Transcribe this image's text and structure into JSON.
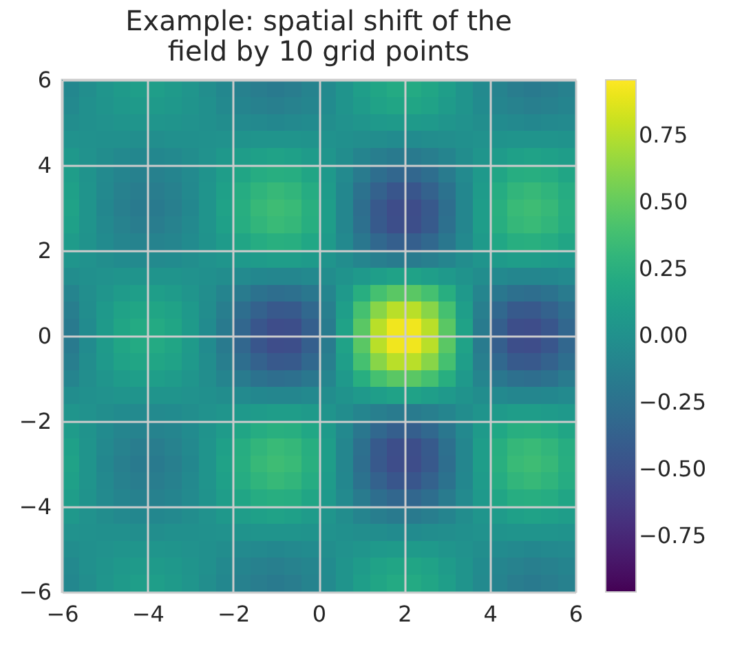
{
  "chart_data": {
    "type": "heatmap",
    "title": "Example: spatial shift of the\nfield by 10 grid points",
    "xlim": [
      -6,
      6
    ],
    "ylim": [
      -6,
      6
    ],
    "xticks": [
      {
        "value": -6,
        "label": "−6"
      },
      {
        "value": -4,
        "label": "−4"
      },
      {
        "value": -2,
        "label": "−2"
      },
      0,
      2,
      4,
      6
    ],
    "yticks": [
      {
        "value": -6,
        "label": "−6"
      },
      {
        "value": -4,
        "label": "−4"
      },
      {
        "value": -2,
        "label": "−2"
      },
      0,
      2,
      4,
      6
    ],
    "clim": [
      -0.96,
      0.96
    ],
    "cticks": [
      {
        "value": -0.75,
        "label": "−0.75"
      },
      {
        "value": -0.5,
        "label": "−0.50"
      },
      {
        "value": -0.25,
        "label": "−0.25"
      },
      {
        "value": 0,
        "label": "0.00"
      },
      0.25,
      {
        "value": 0.5,
        "label": "0.50"
      },
      0.75
    ],
    "grid": true,
    "cells": [
      [
        -0.07,
        -0.02,
        0.04,
        0.08,
        0.11,
        0.11,
        0.08,
        0.04,
        -0.02,
        -0.07,
        -0.13,
        -0.16,
        -0.18,
        -0.16,
        -0.11,
        -0.05,
        0.03,
        0.11,
        0.17,
        0.21,
        0.21,
        0.17,
        0.11,
        0.03,
        -0.05,
        -0.11,
        -0.16,
        -0.18,
        -0.16,
        -0.13
      ],
      [
        -0.06,
        -0.01,
        0.03,
        0.06,
        0.08,
        0.08,
        0.06,
        0.03,
        -0.01,
        -0.06,
        -0.1,
        -0.13,
        -0.14,
        -0.12,
        -0.09,
        -0.04,
        0.03,
        0.09,
        0.14,
        0.17,
        0.17,
        0.14,
        0.09,
        0.03,
        -0.04,
        -0.09,
        -0.12,
        -0.14,
        -0.13,
        -0.1
      ],
      [
        -0.03,
        -0.01,
        0.01,
        0.03,
        0.04,
        0.04,
        0.03,
        0.01,
        -0.01,
        -0.03,
        -0.05,
        -0.06,
        -0.07,
        -0.06,
        -0.04,
        -0.02,
        0.01,
        0.04,
        0.07,
        0.08,
        0.08,
        0.07,
        0.04,
        0.01,
        -0.02,
        -0.04,
        -0.06,
        -0.07,
        -0.06,
        -0.05
      ],
      [
        0.01,
        0,
        -0.01,
        -0.01,
        -0.02,
        -0.02,
        -0.01,
        -0.01,
        0,
        0.01,
        0.02,
        0.03,
        0.03,
        0.03,
        0.02,
        0.01,
        -0.01,
        -0.02,
        -0.03,
        -0.04,
        -0.04,
        -0.03,
        -0.02,
        -0.01,
        0.01,
        0.02,
        0.03,
        0.03,
        0.03,
        0.02
      ],
      [
        0.06,
        0.01,
        -0.03,
        -0.06,
        -0.07,
        -0.07,
        -0.06,
        -0.03,
        0.01,
        0.06,
        0.1,
        0.13,
        0.14,
        0.13,
        0.09,
        0.04,
        -0.03,
        -0.1,
        -0.15,
        -0.18,
        -0.18,
        -0.15,
        -0.1,
        -0.03,
        0.04,
        0.09,
        0.13,
        0.14,
        0.13,
        0.1
      ],
      [
        0.1,
        0.02,
        -0.05,
        -0.1,
        -0.13,
        -0.13,
        -0.1,
        -0.05,
        0.02,
        0.1,
        0.17,
        0.22,
        0.24,
        0.23,
        0.17,
        0.07,
        -0.05,
        -0.17,
        -0.27,
        -0.33,
        -0.33,
        -0.27,
        -0.17,
        -0.05,
        0.07,
        0.17,
        0.23,
        0.24,
        0.22,
        0.17
      ],
      [
        0.13,
        0.03,
        -0.06,
        -0.13,
        -0.16,
        -0.16,
        -0.13,
        -0.06,
        0.03,
        0.13,
        0.22,
        0.29,
        0.33,
        0.3,
        0.22,
        0.09,
        -0.07,
        -0.24,
        -0.37,
        -0.45,
        -0.45,
        -0.37,
        -0.24,
        -0.07,
        0.09,
        0.22,
        0.3,
        0.33,
        0.29,
        0.22
      ],
      [
        0.14,
        0.03,
        -0.07,
        -0.14,
        -0.18,
        -0.18,
        -0.14,
        -0.07,
        0.03,
        0.14,
        0.24,
        0.33,
        0.36,
        0.34,
        0.25,
        0.1,
        -0.08,
        -0.27,
        -0.43,
        -0.52,
        -0.52,
        -0.43,
        -0.27,
        -0.08,
        0.1,
        0.25,
        0.34,
        0.36,
        0.33,
        0.24
      ],
      [
        0.13,
        0.03,
        -0.06,
        -0.12,
        -0.16,
        -0.16,
        -0.12,
        -0.06,
        0.03,
        0.13,
        0.23,
        0.3,
        0.34,
        0.32,
        0.24,
        0.1,
        -0.08,
        -0.26,
        -0.42,
        -0.51,
        -0.51,
        -0.42,
        -0.26,
        -0.08,
        0.1,
        0.24,
        0.32,
        0.34,
        0.3,
        0.23
      ],
      [
        0.09,
        0.02,
        -0.04,
        -0.09,
        -0.11,
        -0.11,
        -0.09,
        -0.04,
        0.02,
        0.09,
        0.17,
        0.22,
        0.25,
        0.24,
        0.18,
        0.08,
        -0.06,
        -0.2,
        -0.32,
        -0.39,
        -0.39,
        -0.32,
        -0.2,
        -0.06,
        0.08,
        0.18,
        0.24,
        0.25,
        0.22,
        0.17
      ],
      [
        0.04,
        0.01,
        -0.02,
        -0.04,
        -0.05,
        -0.05,
        -0.04,
        -0.02,
        0.01,
        0.04,
        0.07,
        0.09,
        0.1,
        0.1,
        0.08,
        0.03,
        -0.03,
        -0.09,
        -0.14,
        -0.17,
        -0.17,
        -0.14,
        -0.09,
        -0.03,
        0.03,
        0.08,
        0.1,
        0.1,
        0.09,
        0.07
      ],
      [
        -0.03,
        -0.01,
        0.01,
        0.03,
        0.03,
        0.03,
        0.03,
        0.01,
        -0.01,
        -0.03,
        -0.05,
        -0.07,
        -0.08,
        -0.08,
        -0.06,
        -0.03,
        0.02,
        0.07,
        0.11,
        0.14,
        0.14,
        0.11,
        0.07,
        0.02,
        -0.03,
        -0.06,
        -0.08,
        -0.08,
        -0.07,
        -0.05
      ],
      [
        -0.1,
        -0.02,
        0.04,
        0.09,
        0.11,
        0.11,
        0.09,
        0.04,
        -0.02,
        -0.1,
        -0.17,
        -0.24,
        -0.27,
        -0.26,
        -0.2,
        -0.09,
        0.07,
        0.24,
        0.39,
        0.47,
        0.47,
        0.39,
        0.24,
        0.07,
        -0.09,
        -0.2,
        -0.26,
        -0.27,
        -0.24,
        -0.17
      ],
      [
        -0.15,
        -0.03,
        0.07,
        0.14,
        0.17,
        0.17,
        0.14,
        0.07,
        -0.03,
        -0.15,
        -0.27,
        -0.37,
        -0.43,
        -0.42,
        -0.32,
        -0.14,
        0.11,
        0.39,
        0.62,
        0.76,
        0.76,
        0.62,
        0.39,
        0.11,
        -0.14,
        -0.32,
        -0.42,
        -0.43,
        -0.37,
        -0.27
      ],
      [
        -0.18,
        -0.04,
        0.08,
        0.17,
        0.21,
        0.21,
        0.17,
        0.08,
        -0.04,
        -0.18,
        -0.33,
        -0.45,
        -0.52,
        -0.51,
        -0.39,
        -0.17,
        0.14,
        0.47,
        0.76,
        0.92,
        0.92,
        0.76,
        0.47,
        0.14,
        -0.17,
        -0.39,
        -0.51,
        -0.52,
        -0.45,
        -0.33
      ],
      [
        -0.18,
        -0.04,
        0.08,
        0.17,
        0.21,
        0.21,
        0.17,
        0.08,
        -0.04,
        -0.18,
        -0.33,
        -0.45,
        -0.52,
        -0.51,
        -0.39,
        -0.17,
        0.14,
        0.47,
        0.76,
        0.92,
        0.92,
        0.76,
        0.47,
        0.14,
        -0.17,
        -0.39,
        -0.51,
        -0.52,
        -0.45,
        -0.33
      ],
      [
        -0.15,
        -0.03,
        0.07,
        0.14,
        0.17,
        0.17,
        0.14,
        0.07,
        -0.03,
        -0.15,
        -0.27,
        -0.37,
        -0.43,
        -0.42,
        -0.32,
        -0.14,
        0.11,
        0.39,
        0.62,
        0.76,
        0.76,
        0.62,
        0.39,
        0.11,
        -0.14,
        -0.32,
        -0.42,
        -0.43,
        -0.37,
        -0.27
      ],
      [
        -0.1,
        -0.02,
        0.04,
        0.09,
        0.11,
        0.11,
        0.09,
        0.04,
        -0.02,
        -0.1,
        -0.17,
        -0.24,
        -0.27,
        -0.26,
        -0.2,
        -0.09,
        0.07,
        0.24,
        0.39,
        0.47,
        0.47,
        0.39,
        0.24,
        0.07,
        -0.09,
        -0.2,
        -0.26,
        -0.27,
        -0.24,
        -0.17
      ],
      [
        -0.03,
        -0.01,
        0.01,
        0.03,
        0.03,
        0.03,
        0.03,
        0.01,
        -0.01,
        -0.03,
        -0.05,
        -0.07,
        -0.08,
        -0.08,
        -0.06,
        -0.03,
        0.02,
        0.07,
        0.11,
        0.14,
        0.14,
        0.11,
        0.07,
        0.02,
        -0.03,
        -0.06,
        -0.08,
        -0.08,
        -0.07,
        -0.05
      ],
      [
        0.04,
        0.01,
        -0.02,
        -0.04,
        -0.05,
        -0.05,
        -0.04,
        -0.02,
        0.01,
        0.04,
        0.07,
        0.09,
        0.1,
        0.1,
        0.08,
        0.03,
        -0.03,
        -0.09,
        -0.14,
        -0.17,
        -0.17,
        -0.14,
        -0.09,
        -0.03,
        0.03,
        0.08,
        0.1,
        0.1,
        0.09,
        0.07
      ],
      [
        0.09,
        0.02,
        -0.04,
        -0.09,
        -0.11,
        -0.11,
        -0.09,
        -0.04,
        0.02,
        0.09,
        0.17,
        0.22,
        0.25,
        0.24,
        0.18,
        0.08,
        -0.06,
        -0.2,
        -0.32,
        -0.39,
        -0.39,
        -0.32,
        -0.2,
        -0.06,
        0.08,
        0.18,
        0.24,
        0.25,
        0.22,
        0.17
      ],
      [
        0.13,
        0.03,
        -0.06,
        -0.12,
        -0.16,
        -0.16,
        -0.12,
        -0.06,
        0.03,
        0.13,
        0.23,
        0.3,
        0.34,
        0.32,
        0.24,
        0.1,
        -0.08,
        -0.26,
        -0.42,
        -0.51,
        -0.51,
        -0.42,
        -0.26,
        -0.08,
        0.1,
        0.24,
        0.32,
        0.34,
        0.3,
        0.23
      ],
      [
        0.14,
        0.03,
        -0.07,
        -0.14,
        -0.18,
        -0.18,
        -0.14,
        -0.07,
        0.03,
        0.14,
        0.24,
        0.33,
        0.36,
        0.34,
        0.25,
        0.1,
        -0.08,
        -0.27,
        -0.43,
        -0.52,
        -0.52,
        -0.43,
        -0.27,
        -0.08,
        0.1,
        0.25,
        0.34,
        0.36,
        0.33,
        0.24
      ],
      [
        0.13,
        0.03,
        -0.06,
        -0.13,
        -0.16,
        -0.16,
        -0.13,
        -0.06,
        0.03,
        0.13,
        0.22,
        0.29,
        0.33,
        0.3,
        0.22,
        0.09,
        -0.07,
        -0.24,
        -0.37,
        -0.45,
        -0.45,
        -0.37,
        -0.24,
        -0.07,
        0.09,
        0.22,
        0.3,
        0.33,
        0.29,
        0.22
      ],
      [
        0.1,
        0.02,
        -0.05,
        -0.1,
        -0.13,
        -0.13,
        -0.1,
        -0.05,
        0.02,
        0.1,
        0.17,
        0.22,
        0.24,
        0.23,
        0.17,
        0.07,
        -0.05,
        -0.17,
        -0.27,
        -0.33,
        -0.33,
        -0.27,
        -0.17,
        -0.05,
        0.07,
        0.17,
        0.23,
        0.24,
        0.22,
        0.17
      ],
      [
        0.06,
        0.01,
        -0.03,
        -0.06,
        -0.07,
        -0.07,
        -0.06,
        -0.03,
        0.01,
        0.06,
        0.1,
        0.13,
        0.14,
        0.13,
        0.09,
        0.04,
        -0.03,
        -0.1,
        -0.15,
        -0.18,
        -0.18,
        -0.15,
        -0.1,
        -0.03,
        0.04,
        0.09,
        0.13,
        0.14,
        0.13,
        0.1
      ],
      [
        0.01,
        0,
        -0.01,
        -0.01,
        -0.02,
        -0.02,
        -0.01,
        -0.01,
        0,
        0.01,
        0.02,
        0.03,
        0.03,
        0.03,
        0.02,
        0.01,
        -0.01,
        -0.02,
        -0.03,
        -0.04,
        -0.04,
        -0.03,
        -0.02,
        -0.01,
        0.01,
        0.02,
        0.03,
        0.03,
        0.03,
        0.02
      ],
      [
        -0.03,
        -0.01,
        0.01,
        0.03,
        0.04,
        0.04,
        0.03,
        0.01,
        -0.01,
        -0.03,
        -0.05,
        -0.06,
        -0.07,
        -0.06,
        -0.04,
        -0.02,
        0.01,
        0.04,
        0.07,
        0.08,
        0.08,
        0.07,
        0.04,
        0.01,
        -0.02,
        -0.04,
        -0.06,
        -0.07,
        -0.06,
        -0.05
      ],
      [
        -0.06,
        -0.01,
        0.03,
        0.06,
        0.08,
        0.08,
        0.06,
        0.03,
        -0.01,
        -0.06,
        -0.1,
        -0.13,
        -0.14,
        -0.12,
        -0.09,
        -0.04,
        0.03,
        0.09,
        0.14,
        0.17,
        0.17,
        0.14,
        0.09,
        0.03,
        -0.04,
        -0.09,
        -0.12,
        -0.14,
        -0.13,
        -0.1
      ],
      [
        -0.07,
        -0.02,
        0.04,
        0.08,
        0.11,
        0.11,
        0.08,
        0.04,
        -0.02,
        -0.07,
        -0.13,
        -0.16,
        -0.18,
        -0.16,
        -0.11,
        -0.05,
        0.03,
        0.11,
        0.17,
        0.21,
        0.21,
        0.17,
        0.11,
        0.03,
        -0.05,
        -0.11,
        -0.16,
        -0.18,
        -0.16,
        -0.13
      ]
    ]
  }
}
